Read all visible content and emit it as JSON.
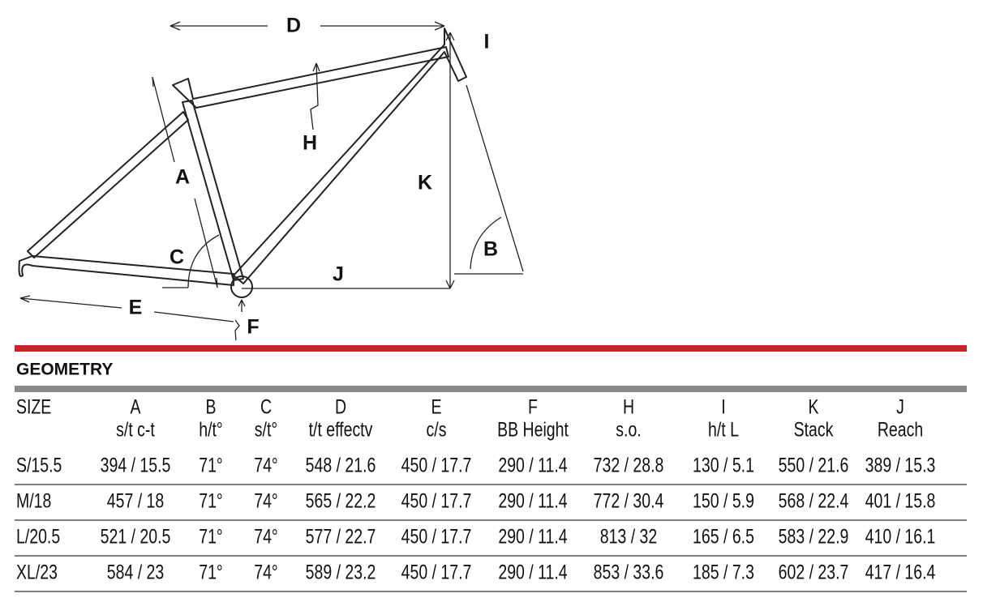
{
  "diagram": {
    "labels": [
      "D",
      "I",
      "H",
      "A",
      "K",
      "C",
      "B",
      "J",
      "E",
      "F"
    ]
  },
  "section_title": "GEOMETRY",
  "table": {
    "header": [
      [
        "SIZE"
      ],
      [
        "A",
        "s/t c-t"
      ],
      [
        "B",
        "h/t°"
      ],
      [
        "C",
        "s/t°"
      ],
      [
        "D",
        "t/t effectv"
      ],
      [
        "E",
        "c/s"
      ],
      [
        "F",
        "BB Height"
      ],
      [
        "H",
        "s.o."
      ],
      [
        "I",
        "h/t L"
      ],
      [
        "K",
        "Stack"
      ],
      [
        "J",
        "Reach"
      ]
    ],
    "rows": [
      [
        "S/15.5",
        "394 / 15.5",
        "71°",
        "74°",
        "548 / 21.6",
        "450 / 17.7",
        "290 / 11.4",
        "732 / 28.8",
        "130 / 5.1",
        "550 / 21.6",
        "389 / 15.3"
      ],
      [
        "M/18",
        "457 / 18",
        "71°",
        "74°",
        "565 / 22.2",
        "450 / 17.7",
        "290 / 11.4",
        "772 / 30.4",
        "150 / 5.9",
        "568 / 22.4",
        "401 / 15.8"
      ],
      [
        "L/20.5",
        "521 / 20.5",
        "71°",
        "74°",
        "577 / 22.7",
        "450 / 17.7",
        "290 / 11.4",
        "813 / 32",
        "165 / 6.5",
        "583 / 22.9",
        "410 / 16.1"
      ],
      [
        "XL/23",
        "584 / 23",
        "71°",
        "74°",
        "589 / 23.2",
        "450 / 17.7",
        "290 / 11.4",
        "853 / 33.6",
        "185 / 7.3",
        "602 / 23.7",
        "417 / 16.4"
      ]
    ]
  }
}
